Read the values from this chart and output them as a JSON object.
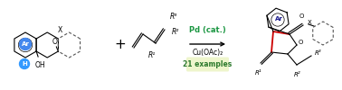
{
  "background_color": "#ffffff",
  "fig_width": 3.78,
  "fig_height": 1.0,
  "dpi": 100,
  "pd_text": "Pd (cat.)",
  "pd_color": "#1a9641",
  "cu_text": "Cu(OAc)₂",
  "cu_color": "#000000",
  "examples_text": "21 examples",
  "ex_color": "#2d7a2d",
  "ex_bg": "#eef5cc",
  "fs": 5.5,
  "fs_label": 6.0,
  "lw": 0.8
}
